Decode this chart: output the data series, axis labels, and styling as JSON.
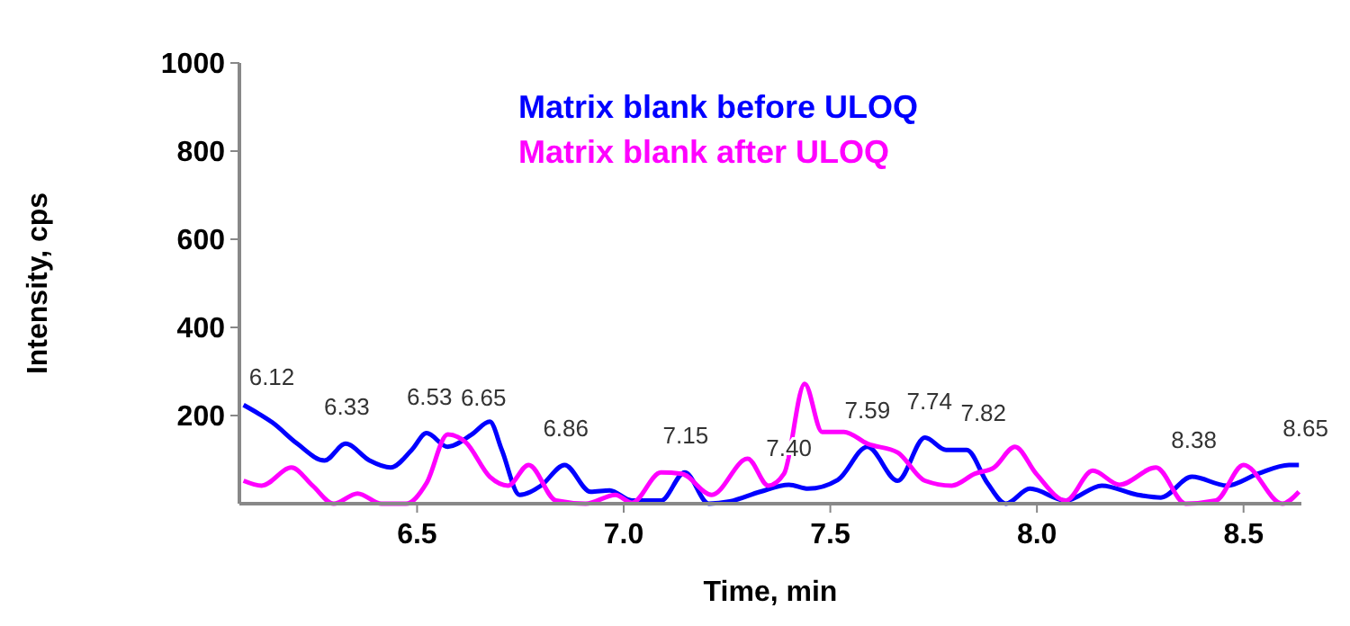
{
  "chart_data": {
    "type": "line",
    "xlabel": "Time, min",
    "ylabel": "Intensity, cps",
    "xlim": [
      6.07,
      8.64
    ],
    "xticks": [
      {
        "value": 6.5,
        "label": "6.5"
      },
      {
        "value": 7,
        "label": "7.0"
      },
      {
        "value": 7.5,
        "label": "7.5"
      },
      {
        "value": 8,
        "label": "8.0"
      },
      {
        "value": 8.5,
        "label": "8.5"
      }
    ],
    "ylim": [
      0,
      1000
    ],
    "yticks": [
      200,
      400,
      600,
      800,
      1000
    ],
    "grid": false,
    "legend": "top",
    "marker": "none",
    "line_style": "solid",
    "series": [
      {
        "name": "Matrix blank before ULOQ",
        "color": "#0000ff",
        "x": [
          6.08,
          6.117,
          6.15,
          6.21,
          6.276,
          6.327,
          6.385,
          6.436,
          6.487,
          6.523,
          6.574,
          6.632,
          6.676,
          6.705,
          6.748,
          6.8,
          6.857,
          6.92,
          6.966,
          7.02,
          7.09,
          7.148,
          7.206,
          7.257,
          7.33,
          7.4,
          7.446,
          7.518,
          7.59,
          7.663,
          7.729,
          7.78,
          7.83,
          7.88,
          7.925,
          7.983,
          8.07,
          8.157,
          8.244,
          8.3,
          8.375,
          8.46,
          8.535,
          8.61,
          8.634
        ],
        "values": [
          224,
          204,
          184,
          136,
          98,
          136,
          98,
          82,
          122,
          160,
          129,
          157,
          186,
          122,
          20,
          41,
          88,
          27,
          30,
          7,
          7,
          71,
          0,
          5,
          27,
          43,
          34,
          54,
          129,
          52,
          150,
          122,
          122,
          47,
          0,
          34,
          7,
          41,
          20,
          14,
          61,
          41,
          68,
          88,
          88
        ]
      },
      {
        "name": "Matrix blank after ULOQ",
        "color": "#ff00ff",
        "x": [
          6.08,
          6.124,
          6.196,
          6.247,
          6.298,
          6.356,
          6.414,
          6.473,
          6.523,
          6.574,
          6.618,
          6.676,
          6.72,
          6.77,
          6.836,
          6.908,
          6.98,
          7.02,
          7.09,
          7.14,
          7.213,
          7.3,
          7.35,
          7.388,
          7.438,
          7.48,
          7.533,
          7.59,
          7.663,
          7.729,
          7.794,
          7.85,
          7.896,
          7.947,
          7.998,
          8.07,
          8.135,
          8.2,
          8.288,
          8.36,
          8.433,
          8.5,
          8.594,
          8.634
        ],
        "values": [
          52,
          41,
          82,
          41,
          0,
          23,
          0,
          0,
          47,
          157,
          139,
          61,
          41,
          88,
          7,
          0,
          20,
          2,
          71,
          68,
          20,
          102,
          41,
          68,
          272,
          163,
          163,
          136,
          116,
          52,
          41,
          68,
          82,
          129,
          68,
          7,
          75,
          43,
          82,
          0,
          7,
          88,
          0,
          27
        ]
      }
    ],
    "annotations": [
      {
        "text": "6.12",
        "x": 6.12,
        "y": 204
      },
      {
        "text": "6.33",
        "x": 6.33,
        "y": 136
      },
      {
        "text": "6.53",
        "x": 6.53,
        "y": 160
      },
      {
        "text": "6.65",
        "x": 6.65,
        "y": 157
      },
      {
        "text": "6.86",
        "x": 6.86,
        "y": 88
      },
      {
        "text": "7.15",
        "x": 7.15,
        "y": 71
      },
      {
        "text": "7.40",
        "x": 7.4,
        "y": 43
      },
      {
        "text": "7.59",
        "x": 7.59,
        "y": 129
      },
      {
        "text": "7.74",
        "x": 7.74,
        "y": 150
      },
      {
        "text": "7.82",
        "x": 7.82,
        "y": 122
      },
      {
        "text": "8.38",
        "x": 8.38,
        "y": 61
      },
      {
        "text": "8.65",
        "x": 8.65,
        "y": 88
      }
    ]
  }
}
